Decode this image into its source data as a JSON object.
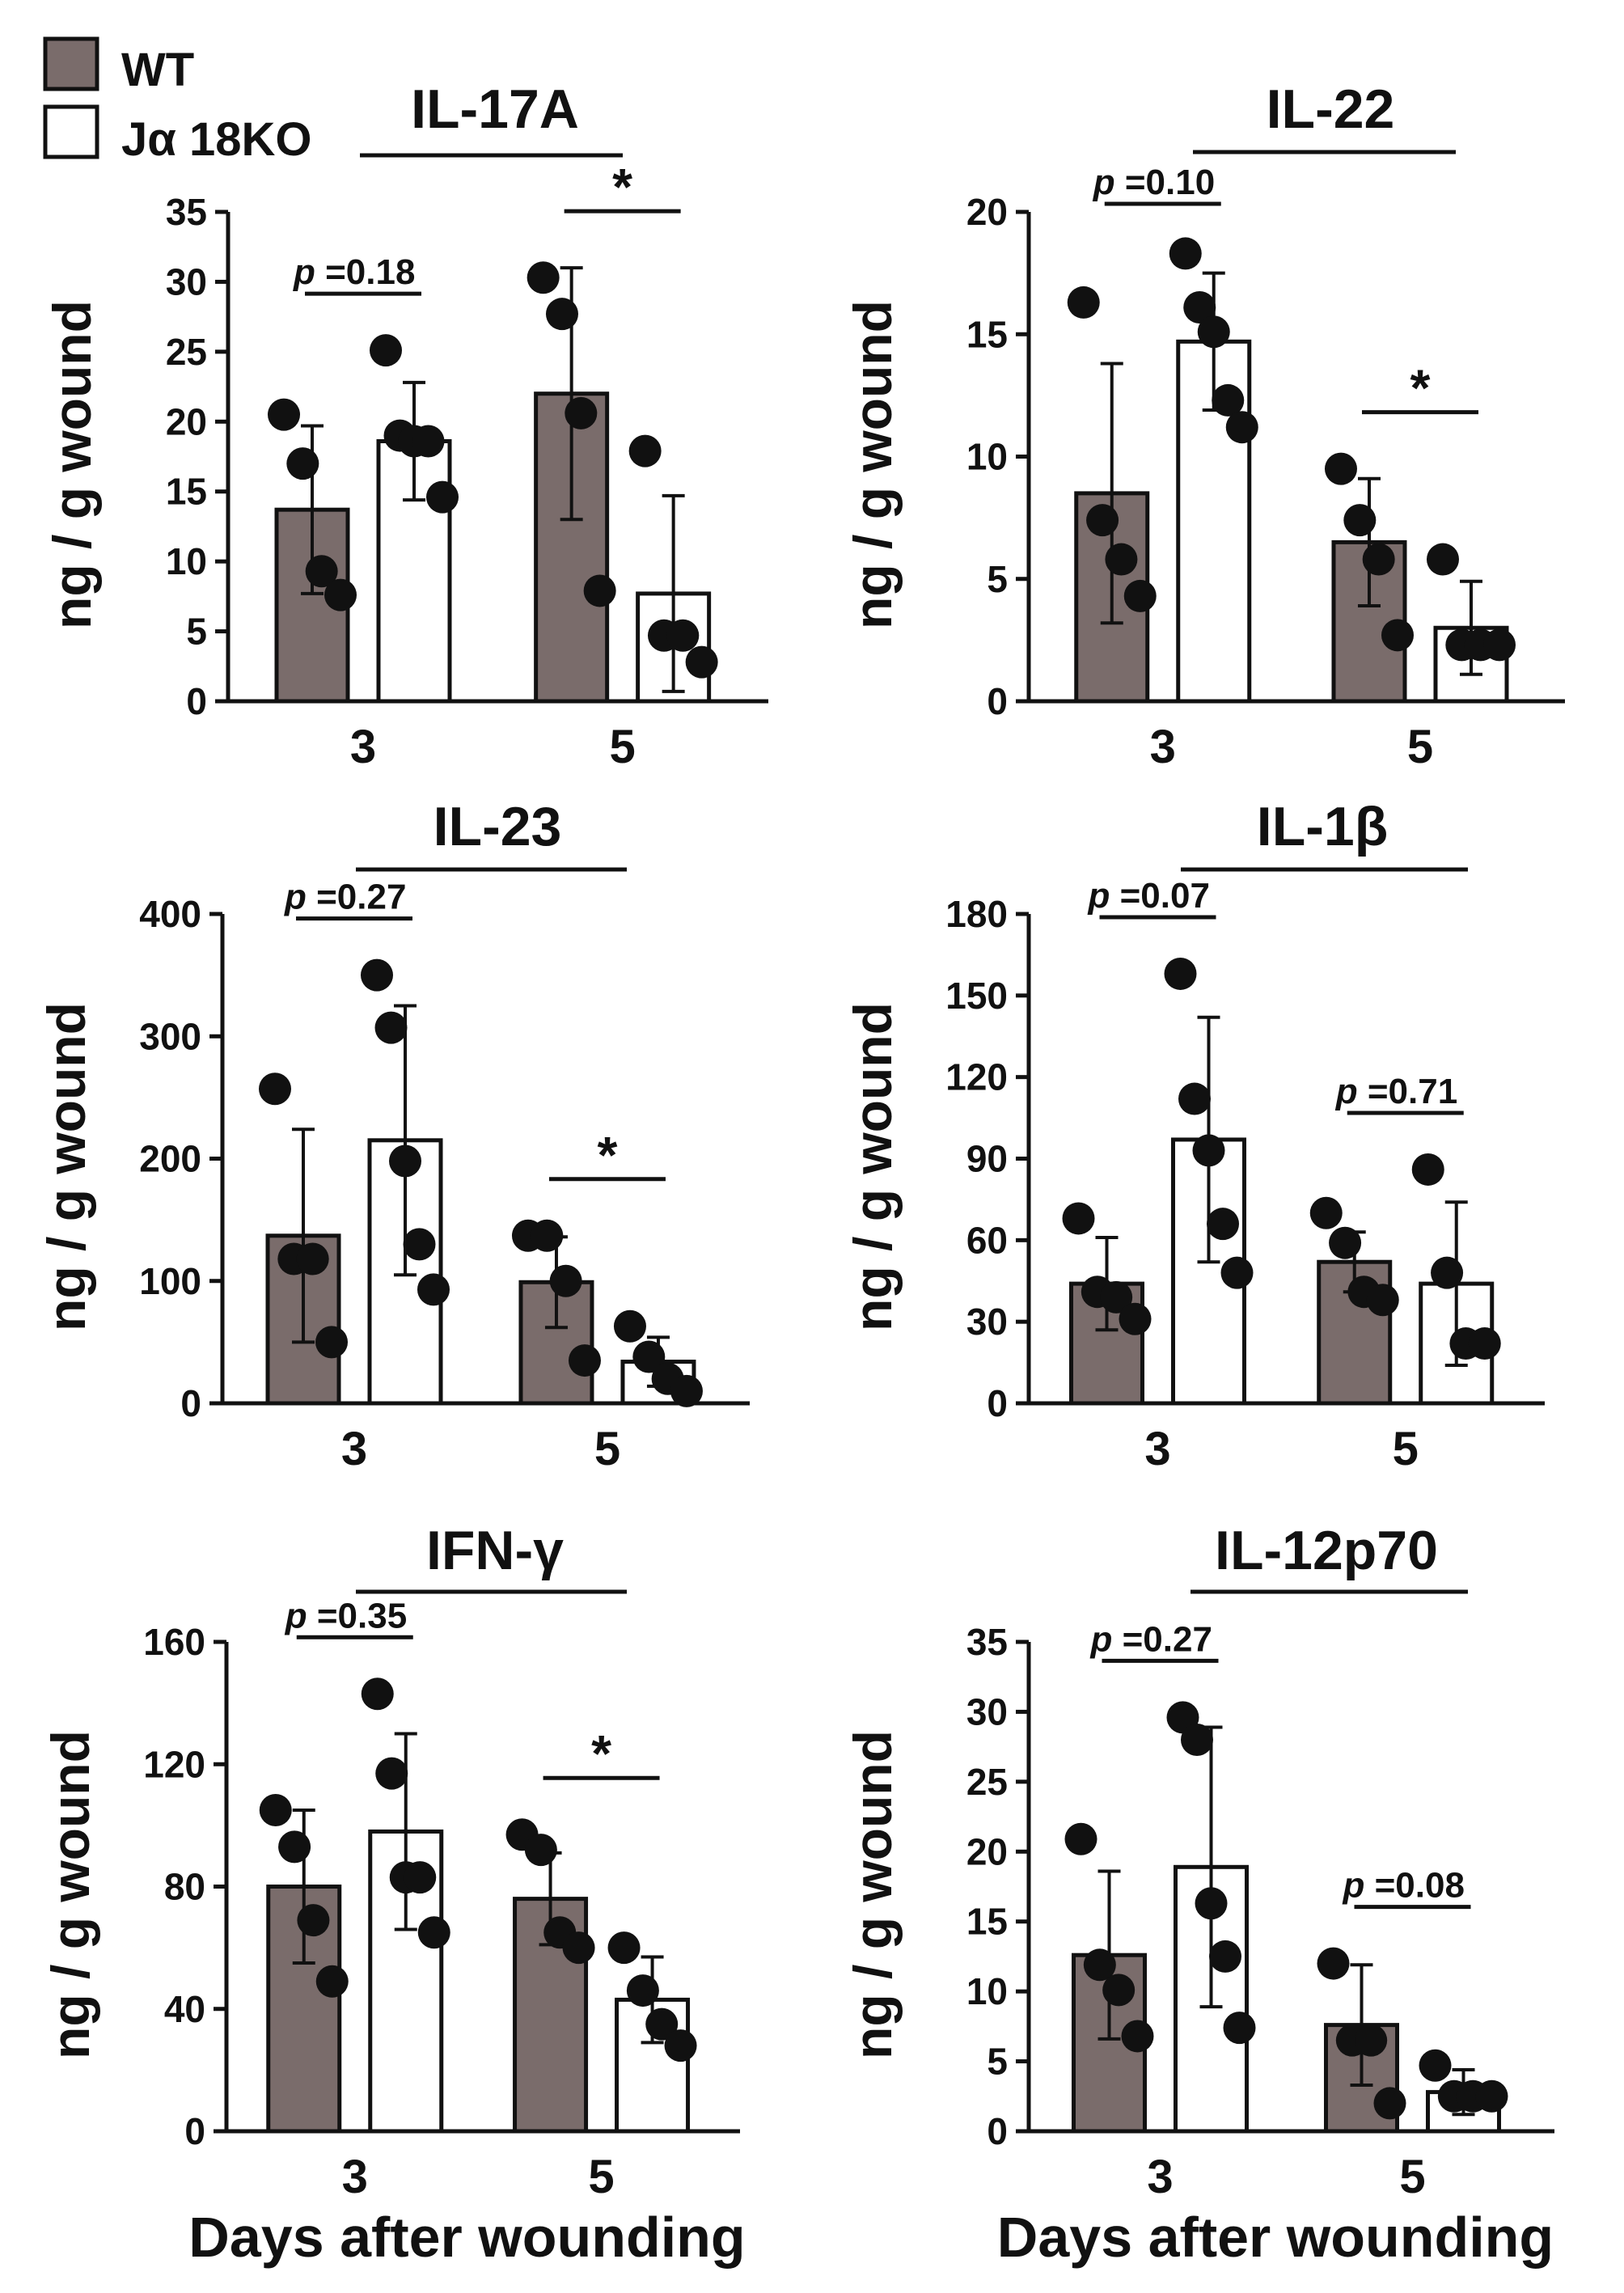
{
  "legend": [
    {
      "label": "WT",
      "fill": "#7a6c6b"
    },
    {
      "label": "Jα 18KO",
      "fill": "#ffffff"
    }
  ],
  "colors": {
    "wt_bar": "#7a6c6b",
    "ko_bar": "#ffffff",
    "ink": "#111111"
  },
  "chart_data": [
    {
      "type": "bar",
      "title": "IL-17A",
      "ylabel": "ng / g wound",
      "xlabel": "",
      "categories": [
        "3",
        "5"
      ],
      "ylim": [
        0,
        35
      ],
      "yticks": [
        0,
        5,
        10,
        15,
        20,
        25,
        30,
        35
      ],
      "series": [
        {
          "name": "WT",
          "values": [
            13.7,
            22.0
          ],
          "errors": [
            6.0,
            9.0
          ],
          "points": [
            [
              20.5,
              17.0,
              9.3,
              7.6
            ],
            [
              30.3,
              27.7,
              20.6,
              7.9
            ]
          ]
        },
        {
          "name": "Jα 18KO",
          "values": [
            18.6,
            7.7
          ],
          "errors": [
            4.2,
            7.0
          ],
          "points": [
            [
              25.1,
              19.0,
              18.6,
              18.6,
              14.6
            ],
            [
              17.9,
              4.7,
              4.7,
              2.8
            ]
          ]
        }
      ],
      "annotations": [
        {
          "category": "3",
          "text": "p =0.18",
          "italic_prefix": "p",
          "value": "=0.18"
        },
        {
          "category": "5",
          "text": "*"
        }
      ]
    },
    {
      "type": "bar",
      "title": "IL-22",
      "ylabel": "ng / g wound",
      "xlabel": "",
      "categories": [
        "3",
        "5"
      ],
      "ylim": [
        0,
        20
      ],
      "yticks": [
        0,
        5,
        10,
        15,
        20
      ],
      "series": [
        {
          "name": "WT",
          "values": [
            8.5,
            6.5
          ],
          "errors": [
            5.3,
            2.6
          ],
          "points": [
            [
              16.3,
              7.4,
              5.8,
              4.3
            ],
            [
              9.5,
              7.4,
              5.8,
              2.7
            ]
          ]
        },
        {
          "name": "Jα 18KO",
          "values": [
            14.7,
            3.0
          ],
          "errors": [
            2.8,
            1.9
          ],
          "points": [
            [
              18.3,
              16.1,
              15.1,
              12.3,
              11.2
            ],
            [
              5.8,
              2.3,
              2.3,
              2.3
            ]
          ]
        }
      ],
      "annotations": [
        {
          "category": "3",
          "text": "p =0.10",
          "italic_prefix": "p",
          "value": "=0.10"
        },
        {
          "category": "5",
          "text": "*"
        }
      ]
    },
    {
      "type": "bar",
      "title": "IL-23",
      "ylabel": "ng / g wound",
      "xlabel": "",
      "categories": [
        "3",
        "5"
      ],
      "ylim": [
        0,
        400
      ],
      "yticks": [
        0,
        100,
        200,
        300,
        400
      ],
      "series": [
        {
          "name": "WT",
          "values": [
            137,
            99
          ],
          "errors": [
            87,
            37
          ],
          "points": [
            [
              257,
              118,
              118,
              50
            ],
            [
              137,
              137,
              100,
              35
            ]
          ]
        },
        {
          "name": "Jα 18KO",
          "values": [
            215,
            34
          ],
          "errors": [
            110,
            20
          ],
          "points": [
            [
              350,
              307,
              198,
              130,
              93
            ],
            [
              63,
              38,
              20,
              10
            ]
          ]
        }
      ],
      "annotations": [
        {
          "category": "3",
          "text": "p =0.27",
          "italic_prefix": "p",
          "value": "=0.27"
        },
        {
          "category": "5",
          "text": "*"
        }
      ]
    },
    {
      "type": "bar",
      "title": "IL-1β",
      "ylabel": "ng / g wound",
      "xlabel": "",
      "categories": [
        "3",
        "5"
      ],
      "ylim": [
        0,
        180
      ],
      "yticks": [
        0,
        30,
        60,
        90,
        120,
        150,
        180
      ],
      "series": [
        {
          "name": "WT",
          "values": [
            44,
            52
          ],
          "errors": [
            17,
            11
          ],
          "points": [
            [
              68,
              41,
              39,
              31
            ],
            [
              70,
              59,
              41,
              38
            ]
          ]
        },
        {
          "name": "Jα 18KO",
          "values": [
            97,
            44
          ],
          "errors": [
            45,
            30
          ],
          "points": [
            [
              158,
              112,
              93,
              66,
              48
            ],
            [
              86,
              48,
              22,
              22
            ]
          ]
        }
      ],
      "annotations": [
        {
          "category": "3",
          "text": "p =0.07",
          "italic_prefix": "p",
          "value": "=0.07"
        },
        {
          "category": "5",
          "text": "p =0.71",
          "italic_prefix": "p",
          "value": "=0.71"
        }
      ]
    },
    {
      "type": "bar",
      "title": "IFN-γ",
      "ylabel": "ng / g wound",
      "xlabel": "Days after wounding",
      "categories": [
        "3",
        "5"
      ],
      "ylim": [
        0,
        160
      ],
      "yticks": [
        0,
        40,
        80,
        120,
        160
      ],
      "series": [
        {
          "name": "WT",
          "values": [
            80,
            76
          ],
          "errors": [
            25,
            15
          ],
          "points": [
            [
              105,
              93,
              69,
              49
            ],
            [
              97,
              92,
              65,
              60
            ]
          ]
        },
        {
          "name": "Jα 18KO",
          "values": [
            98,
            43
          ],
          "errors": [
            32,
            14
          ],
          "points": [
            [
              143,
              117,
              83,
              83,
              65
            ],
            [
              60,
              46,
              35,
              28
            ]
          ]
        }
      ],
      "annotations": [
        {
          "category": "3",
          "text": "p =0.35",
          "italic_prefix": "p",
          "value": "=0.35"
        },
        {
          "category": "5",
          "text": "*"
        }
      ]
    },
    {
      "type": "bar",
      "title": "IL-12p70",
      "ylabel": "ng / g wound",
      "xlabel": "Days after wounding",
      "categories": [
        "3",
        "5"
      ],
      "ylim": [
        0,
        35
      ],
      "yticks": [
        0,
        5,
        10,
        15,
        20,
        25,
        30,
        35
      ],
      "series": [
        {
          "name": "WT",
          "values": [
            12.6,
            7.6
          ],
          "errors": [
            6.0,
            4.3
          ],
          "points": [
            [
              20.9,
              11.9,
              10.1,
              6.8
            ],
            [
              12.0,
              6.5,
              6.5,
              2.0
            ]
          ]
        },
        {
          "name": "Jα 18KO",
          "values": [
            18.9,
            2.8
          ],
          "errors": [
            10.0,
            1.6
          ],
          "points": [
            [
              29.6,
              28.0,
              16.3,
              12.5,
              7.4
            ],
            [
              4.7,
              2.5,
              2.5,
              2.5
            ]
          ]
        }
      ],
      "annotations": [
        {
          "category": "3",
          "text": "p =0.27",
          "italic_prefix": "p",
          "value": "=0.27"
        },
        {
          "category": "5",
          "text": "p =0.08",
          "italic_prefix": "p",
          "value": "=0.08"
        }
      ]
    }
  ]
}
